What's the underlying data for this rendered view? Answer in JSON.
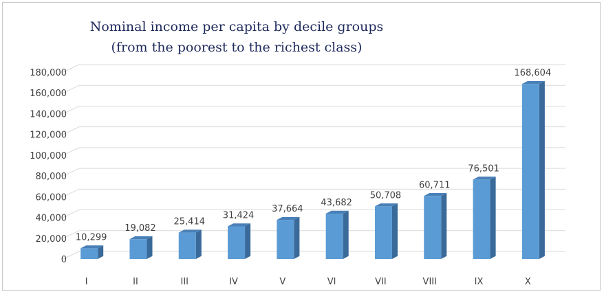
{
  "chart_data": {
    "type": "bar",
    "title": [
      "Nominal income per capita by decile groups",
      "(from the poorest to the richest class)"
    ],
    "xlabel": "",
    "ylabel": "",
    "categories": [
      "I",
      "II",
      "III",
      "IV",
      "V",
      "VI",
      "VII",
      "VIII",
      "IX",
      "X"
    ],
    "values": [
      10299,
      19082,
      25414,
      31424,
      37664,
      43682,
      50708,
      60711,
      76501,
      168604
    ],
    "data_labels": [
      "10,299",
      "19,082",
      "25,414",
      "31,424",
      "37,664",
      "43,682",
      "50,708",
      "60,711",
      "76,501",
      "168,604"
    ],
    "ylim": [
      0,
      180000
    ],
    "yticks": [
      0,
      20000,
      40000,
      60000,
      80000,
      100000,
      120000,
      140000,
      160000,
      180000
    ],
    "ytick_labels": [
      "0",
      "20,000",
      "40,000",
      "60,000",
      "80,000",
      "100,000",
      "120,000",
      "140,000",
      "160,000",
      "180,000"
    ],
    "grid": true,
    "legend": "none",
    "bar_3d": true,
    "colors": {
      "bar_front": "#5b9bd5",
      "bar_side": "#3a6a9a",
      "bar_top": "#4a80b8",
      "gridline": "#d9d9d9",
      "title": "#1f2a5c",
      "text": "#404040"
    }
  }
}
